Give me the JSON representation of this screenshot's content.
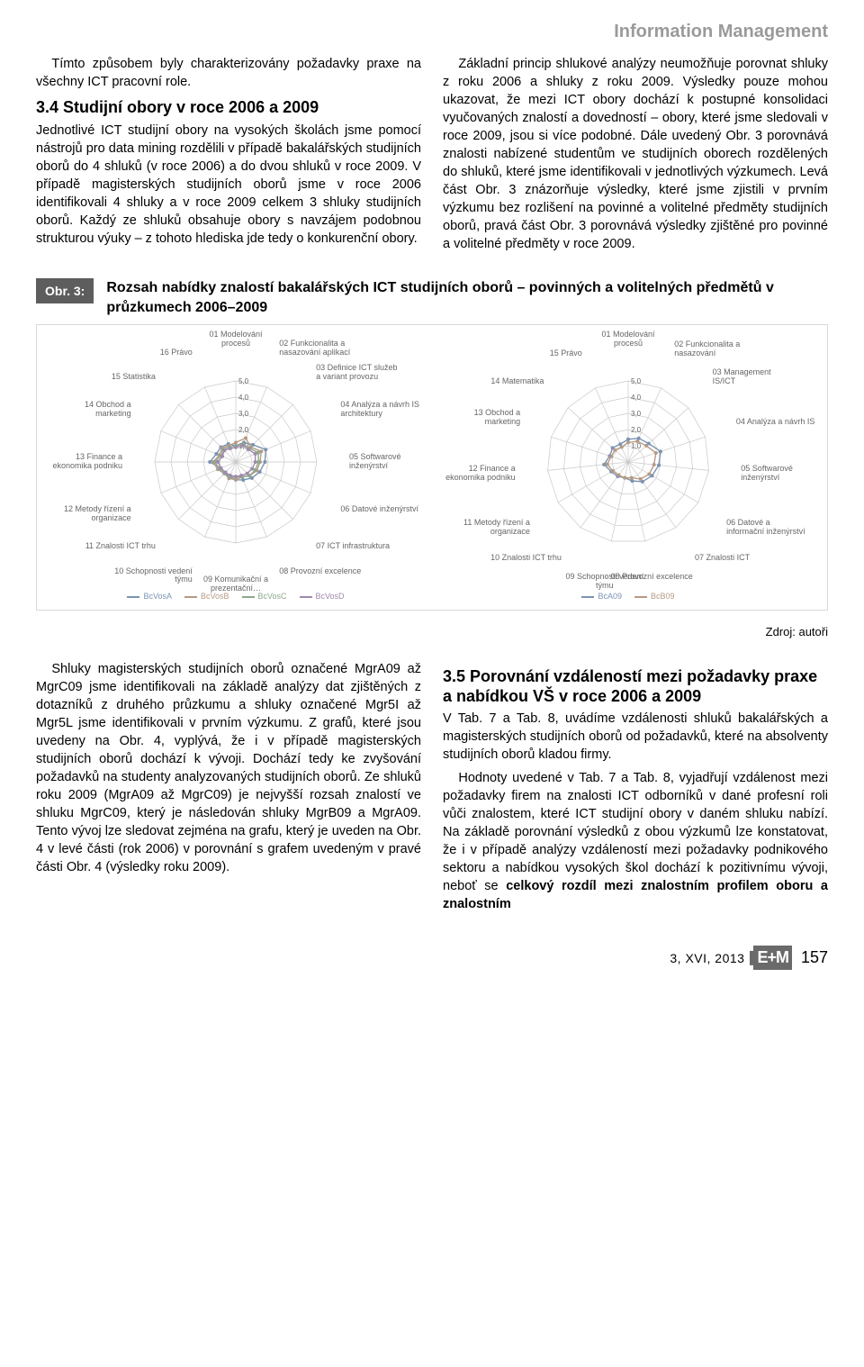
{
  "header": {
    "section_title": "Information Management"
  },
  "colA": {
    "p1": "Tímto způsobem byly charakterizovány požadavky praxe na všechny ICT pracovní role.",
    "h3": "3.4 Studijní obory v roce 2006 a 2009",
    "p2": "Jednotlivé ICT studijní obory na vysokých školách jsme pomocí nástrojů pro data mining rozdělili v případě bakalářských studijních oborů do 4 shluků (v roce 2006) a do dvou shluků v roce 2009. V případě magisterských studijních oborů jsme v roce 2006 identifikovali 4 shluky a v roce 2009 celkem 3 shluky studijních oborů. Každý ze shluků obsahuje obory s navzájem podobnou strukturou výuky – z tohoto hlediska jde tedy o konkurenční obory."
  },
  "colB": {
    "p1": "Základní princip shlukové analýzy neumožňuje porovnat shluky z roku 2006 a shluky z roku 2009. Výsledky pouze mohou ukazovat, že mezi ICT obory dochází k postupné konsolidaci vyučovaných znalostí a dovedností – obory, které jsme sledovali v roce 2009, jsou si více podobné. Dále uvedený Obr. 3 porovnává znalosti nabízené studentům ve studijních oborech rozdělených do shluků, které jsme identifikovali v jednotlivých výzkumech. Levá část Obr. 3 znázorňuje výsledky, které jsme zjistili v prvním výzkumu bez rozlišení na povinné a volitelné předměty studijních oborů, pravá část Obr. 3 porovnává výsledky zjištěné pro povinné a volitelné předměty v roce 2009."
  },
  "figure": {
    "label": "Obr. 3:",
    "title": "Rozsah nabídky znalostí bakalářských ICT studijních oborů – povinných a volitelných předmětů v průzkumech 2006–2009",
    "source": "Zdroj: autoři"
  },
  "radarLeft": {
    "type": "radar",
    "scale_labels": [
      "1,0",
      "2,0",
      "3,0",
      "4,0",
      "5,0"
    ],
    "scale_max": 5.0,
    "grid_color": "#c9c9c9",
    "label_color": "#666666",
    "label_fontsize": 9,
    "axes": [
      "01 Modelování procesů",
      "02 Funkcionalita a nasazování aplikací",
      "03 Definice ICT služeb a variant provozu",
      "04 Analýza a návrh IS architektury",
      "05 Softwarové inženýrství",
      "06 Datové inženýrství",
      "07 ICT infrastruktura",
      "08 Provozní excelence",
      "09 Komunikační a prezentační…",
      "10 Schopnosti vedení týmu",
      "11 Znalosti ICT trhu",
      "12 Metody řízení a organizace",
      "13 Finance a ekonomika podniku",
      "14 Obchod a marketing",
      "15 Statistika",
      "16 Právo"
    ],
    "series": [
      {
        "name": "BcVosA",
        "color": "#7a93b3",
        "values": [
          1.0,
          1.3,
          1.5,
          2.0,
          1.8,
          1.6,
          1.4,
          1.2,
          1.1,
          1.0,
          0.9,
          1.0,
          1.6,
          1.3,
          1.3,
          1.2
        ]
      },
      {
        "name": "BcVosB",
        "color": "#b79a84",
        "values": [
          1.2,
          1.6,
          1.3,
          1.7,
          1.5,
          1.4,
          1.2,
          1.0,
          1.1,
          1.1,
          1.0,
          1.2,
          1.4,
          1.1,
          1.2,
          1.1
        ]
      },
      {
        "name": "BcVosC",
        "color": "#8da88d",
        "values": [
          1.0,
          1.2,
          1.2,
          1.5,
          1.4,
          1.3,
          1.2,
          1.0,
          0.9,
          1.0,
          1.0,
          1.1,
          1.3,
          1.0,
          1.1,
          1.0
        ]
      },
      {
        "name": "BcVosD",
        "color": "#a08aac",
        "values": [
          0.9,
          1.1,
          1.1,
          1.3,
          1.2,
          1.1,
          1.0,
          0.9,
          0.9,
          0.9,
          0.9,
          1.0,
          1.1,
          0.9,
          1.0,
          0.9
        ]
      }
    ],
    "legend_items": [
      "BcVosA",
      "BcVosB",
      "BcVosC",
      "BcVosD"
    ]
  },
  "radarRight": {
    "type": "radar",
    "scale_labels": [
      "1,0",
      "2,0",
      "3,0",
      "4,0",
      "5,0"
    ],
    "scale_max": 5.0,
    "grid_color": "#c9c9c9",
    "label_color": "#666666",
    "label_fontsize": 9,
    "axes": [
      "01 Modelování procesů",
      "02 Funkcionalita a nasazování",
      "03 Management IS/ICT",
      "04 Analýza a návrh IS",
      "05 Softwarové inženýrství",
      "06 Datové a informační inženýrství",
      "07 Znalosti ICT",
      "08 Provozní excelence",
      "09 Schopnosti vedení týmu",
      "10 Znalosti ICT trhu",
      "11 Metody řízení a organizace",
      "12 Finance a ekonomika podniku",
      "13 Obchod a marketing",
      "14 Matematika",
      "15 Právo"
    ],
    "series": [
      {
        "name": "BcA09",
        "color": "#7a93b3",
        "values": [
          1.4,
          1.6,
          1.7,
          2.1,
          1.9,
          1.7,
          1.5,
          1.2,
          1.0,
          1.1,
          1.2,
          1.5,
          1.2,
          1.3,
          1.2
        ]
      },
      {
        "name": "BcB09",
        "color": "#b79a84",
        "values": [
          1.2,
          1.4,
          1.5,
          1.8,
          1.6,
          1.5,
          1.3,
          1.0,
          1.0,
          1.0,
          1.1,
          1.3,
          1.1,
          1.1,
          1.0
        ]
      }
    ],
    "legend_items": [
      "BcA09",
      "BcB09"
    ]
  },
  "colC": {
    "p1": "Shluky magisterských studijních oborů označené MgrA09 až MgrC09 jsme identifikovali na základě analýzy dat zjištěných z dotazníků z druhého průzkumu a shluky označené Mgr5I až Mgr5L jsme identifikovali v prvním výzkumu. Z grafů, které jsou uvedeny na Obr. 4, vyplývá, že i v případě magisterských studijních oborů dochází k vývoji. Dochází tedy ke zvyšování požadavků na studenty analyzovaných studijních oborů. Ze shluků roku 2009 (MgrA09 až MgrC09) je nejvyšší rozsah znalostí ve shluku MgrC09, který je následován shluky MgrB09 a MgrA09. Tento vývoj lze sledovat zejména na grafu, který je uveden na Obr. 4 v levé části (rok 2006) v porovnání s grafem uvedeným v pravé části Obr. 4 (výsledky roku 2009)."
  },
  "colD": {
    "h3": "3.5 Porovnání vzdáleností mezi požadavky praxe a nabídkou VŠ v roce 2006 a 2009",
    "p1": "V Tab. 7 a Tab. 8, uvádíme vzdálenosti shluků bakalářských a magisterských studijních oborů od požadavků, které na absolventy studijních oborů kladou firmy.",
    "p2a": "Hodnoty uvedené v Tab. 7 a Tab. 8, vyjadřují vzdálenost mezi požadavky firem na znalosti ICT odborníků v dané profesní roli vůči znalostem, které ICT studijní obory v daném shluku nabízí. Na základě porovnání výsledků z obou výzkumů lze konstatovat, že i v případě analýzy vzdáleností mezi požadavky podnikového sektoru a nabídkou vysokých škol dochází k pozitivnímu vývoji, neboť se ",
    "p2b": "celkový rozdíl mezi znalostním profilem oboru a znalostním"
  },
  "footer": {
    "issue": "3, XVI, 2013",
    "logo": "E+M",
    "page": "157"
  }
}
